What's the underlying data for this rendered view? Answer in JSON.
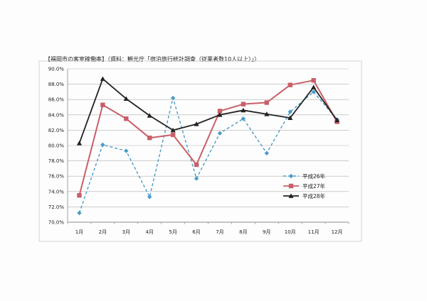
{
  "chart_data": {
    "type": "line",
    "title": "【福岡市の客室稼働率】（資料：観光庁「宿泊旅行統計調査（従業者数10人以上）」）",
    "xlabel": "",
    "ylabel": "",
    "categories": [
      "1月",
      "2月",
      "3月",
      "4月",
      "5月",
      "6月",
      "7月",
      "8月",
      "9月",
      "10月",
      "11月",
      "12月"
    ],
    "ylim": [
      70.0,
      90.0
    ],
    "yticks": [
      "70.0%",
      "72.0%",
      "74.0%",
      "76.0%",
      "78.0%",
      "80.0%",
      "82.0%",
      "84.0%",
      "86.0%",
      "88.0%",
      "90.0%"
    ],
    "grid": true,
    "legend_position": "right",
    "series": [
      {
        "name": "平成26年",
        "color": "#4a9cc8",
        "marker": "diamond",
        "dash": true,
        "values": [
          71.2,
          80.1,
          79.3,
          73.3,
          86.2,
          75.7,
          81.6,
          83.5,
          79.0,
          84.4,
          87.0,
          83.4
        ]
      },
      {
        "name": "平成27年",
        "color": "#c95f68",
        "marker": "square",
        "dash": false,
        "values": [
          73.5,
          85.3,
          83.5,
          81.0,
          81.4,
          77.5,
          84.5,
          85.4,
          85.6,
          87.9,
          88.5,
          83.1
        ]
      },
      {
        "name": "平成28年",
        "color": "#222222",
        "marker": "triangle",
        "dash": false,
        "values": [
          80.3,
          88.7,
          86.1,
          83.9,
          82.0,
          82.8,
          84.0,
          84.6,
          84.1,
          83.6,
          87.6,
          83.3
        ]
      }
    ]
  }
}
